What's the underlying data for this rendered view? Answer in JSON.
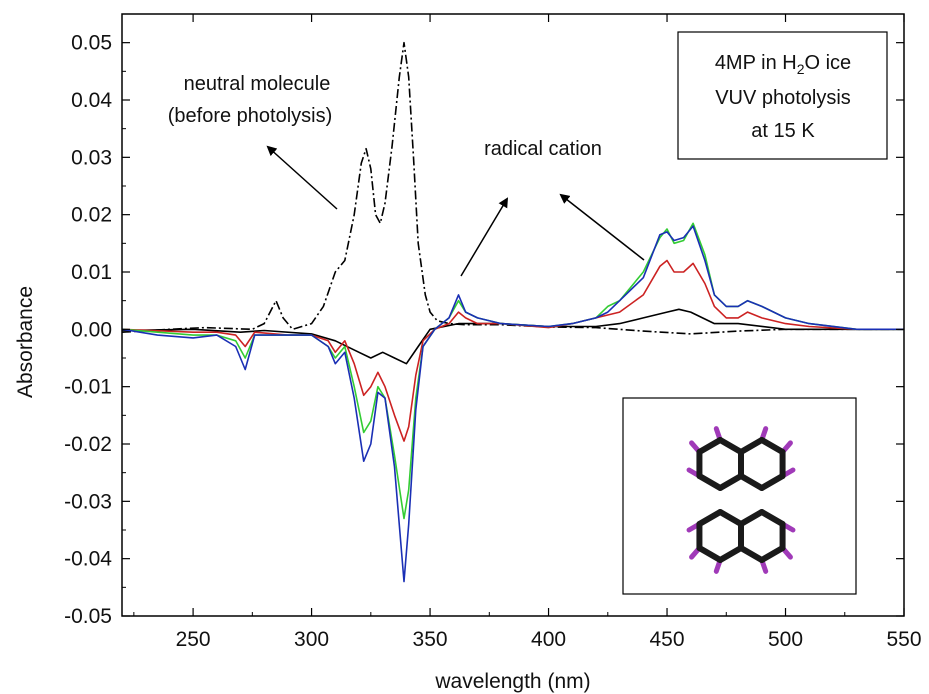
{
  "chart_data": {
    "type": "line",
    "xlabel": "wavelength (nm)",
    "ylabel": "Absorbance",
    "xlim": [
      220,
      550
    ],
    "ylim": [
      -0.05,
      0.055
    ],
    "x_ticks": [
      250,
      300,
      350,
      400,
      450,
      500,
      550
    ],
    "y_ticks": [
      -0.05,
      -0.04,
      -0.03,
      -0.02,
      -0.01,
      0.0,
      0.01,
      0.02,
      0.03,
      0.04,
      0.05
    ],
    "x_tick_labels": [
      "250",
      "300",
      "350",
      "400",
      "450",
      "500",
      "550"
    ],
    "y_tick_labels": [
      "-0.05",
      "-0.04",
      "-0.03",
      "-0.02",
      "-0.01",
      "0.00",
      "0.01",
      "0.02",
      "0.03",
      "0.04",
      "0.05"
    ],
    "grid": false,
    "annotations": {
      "neutral_line1": "neutral molecule",
      "neutral_line2": "(before photolysis)",
      "radical": "radical cation",
      "box_line1_a": "4MP in H",
      "box_line1_sub": "2",
      "box_line1_b": "O ice",
      "box_line2": "VUV photolysis",
      "box_line3": "at 15 K"
    },
    "series": [
      {
        "color": "#000000",
        "dash": "dashdot",
        "points": [
          [
            220,
            -0.0005
          ],
          [
            240,
            0
          ],
          [
            255,
            0.0003
          ],
          [
            275,
            0
          ],
          [
            280,
            0.001
          ],
          [
            285,
            0.005
          ],
          [
            288,
            0.002
          ],
          [
            292,
            0
          ],
          [
            300,
            0.001
          ],
          [
            305,
            0.004
          ],
          [
            310,
            0.01
          ],
          [
            314,
            0.012
          ],
          [
            318,
            0.02
          ],
          [
            321,
            0.029
          ],
          [
            323,
            0.0315
          ],
          [
            325,
            0.028
          ],
          [
            327,
            0.02
          ],
          [
            329,
            0.0185
          ],
          [
            331,
            0.022
          ],
          [
            334,
            0.032
          ],
          [
            337,
            0.044
          ],
          [
            339,
            0.05
          ],
          [
            341,
            0.044
          ],
          [
            343,
            0.03
          ],
          [
            345,
            0.015
          ],
          [
            348,
            0.006
          ],
          [
            350,
            0.003
          ],
          [
            353,
            0.0015
          ],
          [
            358,
            0.001
          ],
          [
            365,
            0.0008
          ],
          [
            380,
            0.0008
          ],
          [
            400,
            0.0004
          ],
          [
            420,
            0.0003
          ],
          [
            440,
            -0.0003
          ],
          [
            460,
            -0.0008
          ],
          [
            480,
            -0.0003
          ],
          [
            500,
            0
          ],
          [
            550,
            0
          ]
        ]
      },
      {
        "color": "#000000",
        "dash": "solid",
        "points": [
          [
            220,
            -0.0002
          ],
          [
            250,
            0
          ],
          [
            270,
            -0.0005
          ],
          [
            280,
            -0.0002
          ],
          [
            300,
            -0.0008
          ],
          [
            310,
            -0.002
          ],
          [
            320,
            -0.004
          ],
          [
            325,
            -0.005
          ],
          [
            330,
            -0.004
          ],
          [
            335,
            -0.005
          ],
          [
            340,
            -0.006
          ],
          [
            345,
            -0.003
          ],
          [
            350,
            0
          ],
          [
            362,
            0.001
          ],
          [
            380,
            0.001
          ],
          [
            400,
            0.0005
          ],
          [
            420,
            0.0005
          ],
          [
            430,
            0.001
          ],
          [
            440,
            0.002
          ],
          [
            450,
            0.003
          ],
          [
            455,
            0.0035
          ],
          [
            460,
            0.003
          ],
          [
            470,
            0.001
          ],
          [
            480,
            0.001
          ],
          [
            500,
            0
          ],
          [
            550,
            0
          ]
        ]
      },
      {
        "color": "#cc2222",
        "dash": "solid",
        "points": [
          [
            220,
            0
          ],
          [
            250,
            -0.0005
          ],
          [
            260,
            -0.0005
          ],
          [
            268,
            -0.001
          ],
          [
            272,
            -0.003
          ],
          [
            276,
            -0.0005
          ],
          [
            290,
            -0.001
          ],
          [
            300,
            -0.001
          ],
          [
            307,
            -0.002
          ],
          [
            310,
            -0.004
          ],
          [
            314,
            -0.002
          ],
          [
            318,
            -0.006
          ],
          [
            322,
            -0.0115
          ],
          [
            325,
            -0.01
          ],
          [
            328,
            -0.0075
          ],
          [
            331,
            -0.01
          ],
          [
            335,
            -0.015
          ],
          [
            339,
            -0.0195
          ],
          [
            341,
            -0.017
          ],
          [
            344,
            -0.008
          ],
          [
            347,
            -0.002
          ],
          [
            352,
            0
          ],
          [
            358,
            0.001
          ],
          [
            362,
            0.003
          ],
          [
            365,
            0.002
          ],
          [
            370,
            0.001
          ],
          [
            380,
            0.001
          ],
          [
            400,
            0.0003
          ],
          [
            410,
            0.001
          ],
          [
            420,
            0.002
          ],
          [
            430,
            0.003
          ],
          [
            440,
            0.006
          ],
          [
            447,
            0.011
          ],
          [
            450,
            0.012
          ],
          [
            453,
            0.01
          ],
          [
            457,
            0.01
          ],
          [
            461,
            0.0115
          ],
          [
            466,
            0.008
          ],
          [
            470,
            0.004
          ],
          [
            475,
            0.002
          ],
          [
            480,
            0.002
          ],
          [
            484,
            0.003
          ],
          [
            490,
            0.002
          ],
          [
            500,
            0.001
          ],
          [
            510,
            0.0005
          ],
          [
            530,
            0
          ],
          [
            550,
            0
          ]
        ]
      },
      {
        "color": "#33cc33",
        "dash": "solid",
        "points": [
          [
            220,
            0
          ],
          [
            250,
            -0.001
          ],
          [
            260,
            -0.001
          ],
          [
            268,
            -0.002
          ],
          [
            272,
            -0.005
          ],
          [
            276,
            -0.001
          ],
          [
            290,
            -0.001
          ],
          [
            300,
            -0.001
          ],
          [
            307,
            -0.003
          ],
          [
            310,
            -0.005
          ],
          [
            314,
            -0.003
          ],
          [
            318,
            -0.01
          ],
          [
            322,
            -0.018
          ],
          [
            325,
            -0.016
          ],
          [
            328,
            -0.01
          ],
          [
            331,
            -0.012
          ],
          [
            335,
            -0.022
          ],
          [
            339,
            -0.033
          ],
          [
            341,
            -0.028
          ],
          [
            344,
            -0.012
          ],
          [
            347,
            -0.003
          ],
          [
            352,
            0
          ],
          [
            358,
            0.002
          ],
          [
            362,
            0.005
          ],
          [
            365,
            0.003
          ],
          [
            370,
            0.002
          ],
          [
            380,
            0.001
          ],
          [
            400,
            0.0005
          ],
          [
            410,
            0.001
          ],
          [
            420,
            0.002
          ],
          [
            425,
            0.004
          ],
          [
            430,
            0.005
          ],
          [
            440,
            0.01
          ],
          [
            447,
            0.016
          ],
          [
            450,
            0.0175
          ],
          [
            453,
            0.015
          ],
          [
            457,
            0.0155
          ],
          [
            461,
            0.0185
          ],
          [
            466,
            0.013
          ],
          [
            470,
            0.006
          ],
          [
            475,
            0.004
          ],
          [
            480,
            0.004
          ],
          [
            484,
            0.005
          ],
          [
            490,
            0.004
          ],
          [
            500,
            0.002
          ],
          [
            510,
            0.001
          ],
          [
            530,
            0
          ],
          [
            550,
            0
          ]
        ]
      },
      {
        "color": "#1a2fb5",
        "dash": "solid",
        "points": [
          [
            220,
            0
          ],
          [
            235,
            -0.001
          ],
          [
            250,
            -0.0015
          ],
          [
            260,
            -0.001
          ],
          [
            268,
            -0.003
          ],
          [
            272,
            -0.007
          ],
          [
            276,
            -0.001
          ],
          [
            290,
            -0.001
          ],
          [
            300,
            -0.001
          ],
          [
            307,
            -0.003
          ],
          [
            310,
            -0.006
          ],
          [
            314,
            -0.004
          ],
          [
            318,
            -0.012
          ],
          [
            322,
            -0.023
          ],
          [
            325,
            -0.02
          ],
          [
            328,
            -0.011
          ],
          [
            331,
            -0.012
          ],
          [
            335,
            -0.024
          ],
          [
            339,
            -0.044
          ],
          [
            341,
            -0.034
          ],
          [
            344,
            -0.014
          ],
          [
            347,
            -0.003
          ],
          [
            352,
            0
          ],
          [
            358,
            0.002
          ],
          [
            362,
            0.006
          ],
          [
            365,
            0.003
          ],
          [
            370,
            0.002
          ],
          [
            380,
            0.001
          ],
          [
            400,
            0.0005
          ],
          [
            410,
            0.001
          ],
          [
            420,
            0.002
          ],
          [
            425,
            0.003
          ],
          [
            430,
            0.005
          ],
          [
            440,
            0.009
          ],
          [
            447,
            0.0165
          ],
          [
            450,
            0.017
          ],
          [
            453,
            0.0155
          ],
          [
            457,
            0.016
          ],
          [
            461,
            0.018
          ],
          [
            466,
            0.012
          ],
          [
            470,
            0.006
          ],
          [
            475,
            0.004
          ],
          [
            480,
            0.004
          ],
          [
            484,
            0.005
          ],
          [
            490,
            0.004
          ],
          [
            500,
            0.002
          ],
          [
            510,
            0.001
          ],
          [
            530,
            0
          ],
          [
            550,
            0
          ]
        ]
      }
    ]
  }
}
